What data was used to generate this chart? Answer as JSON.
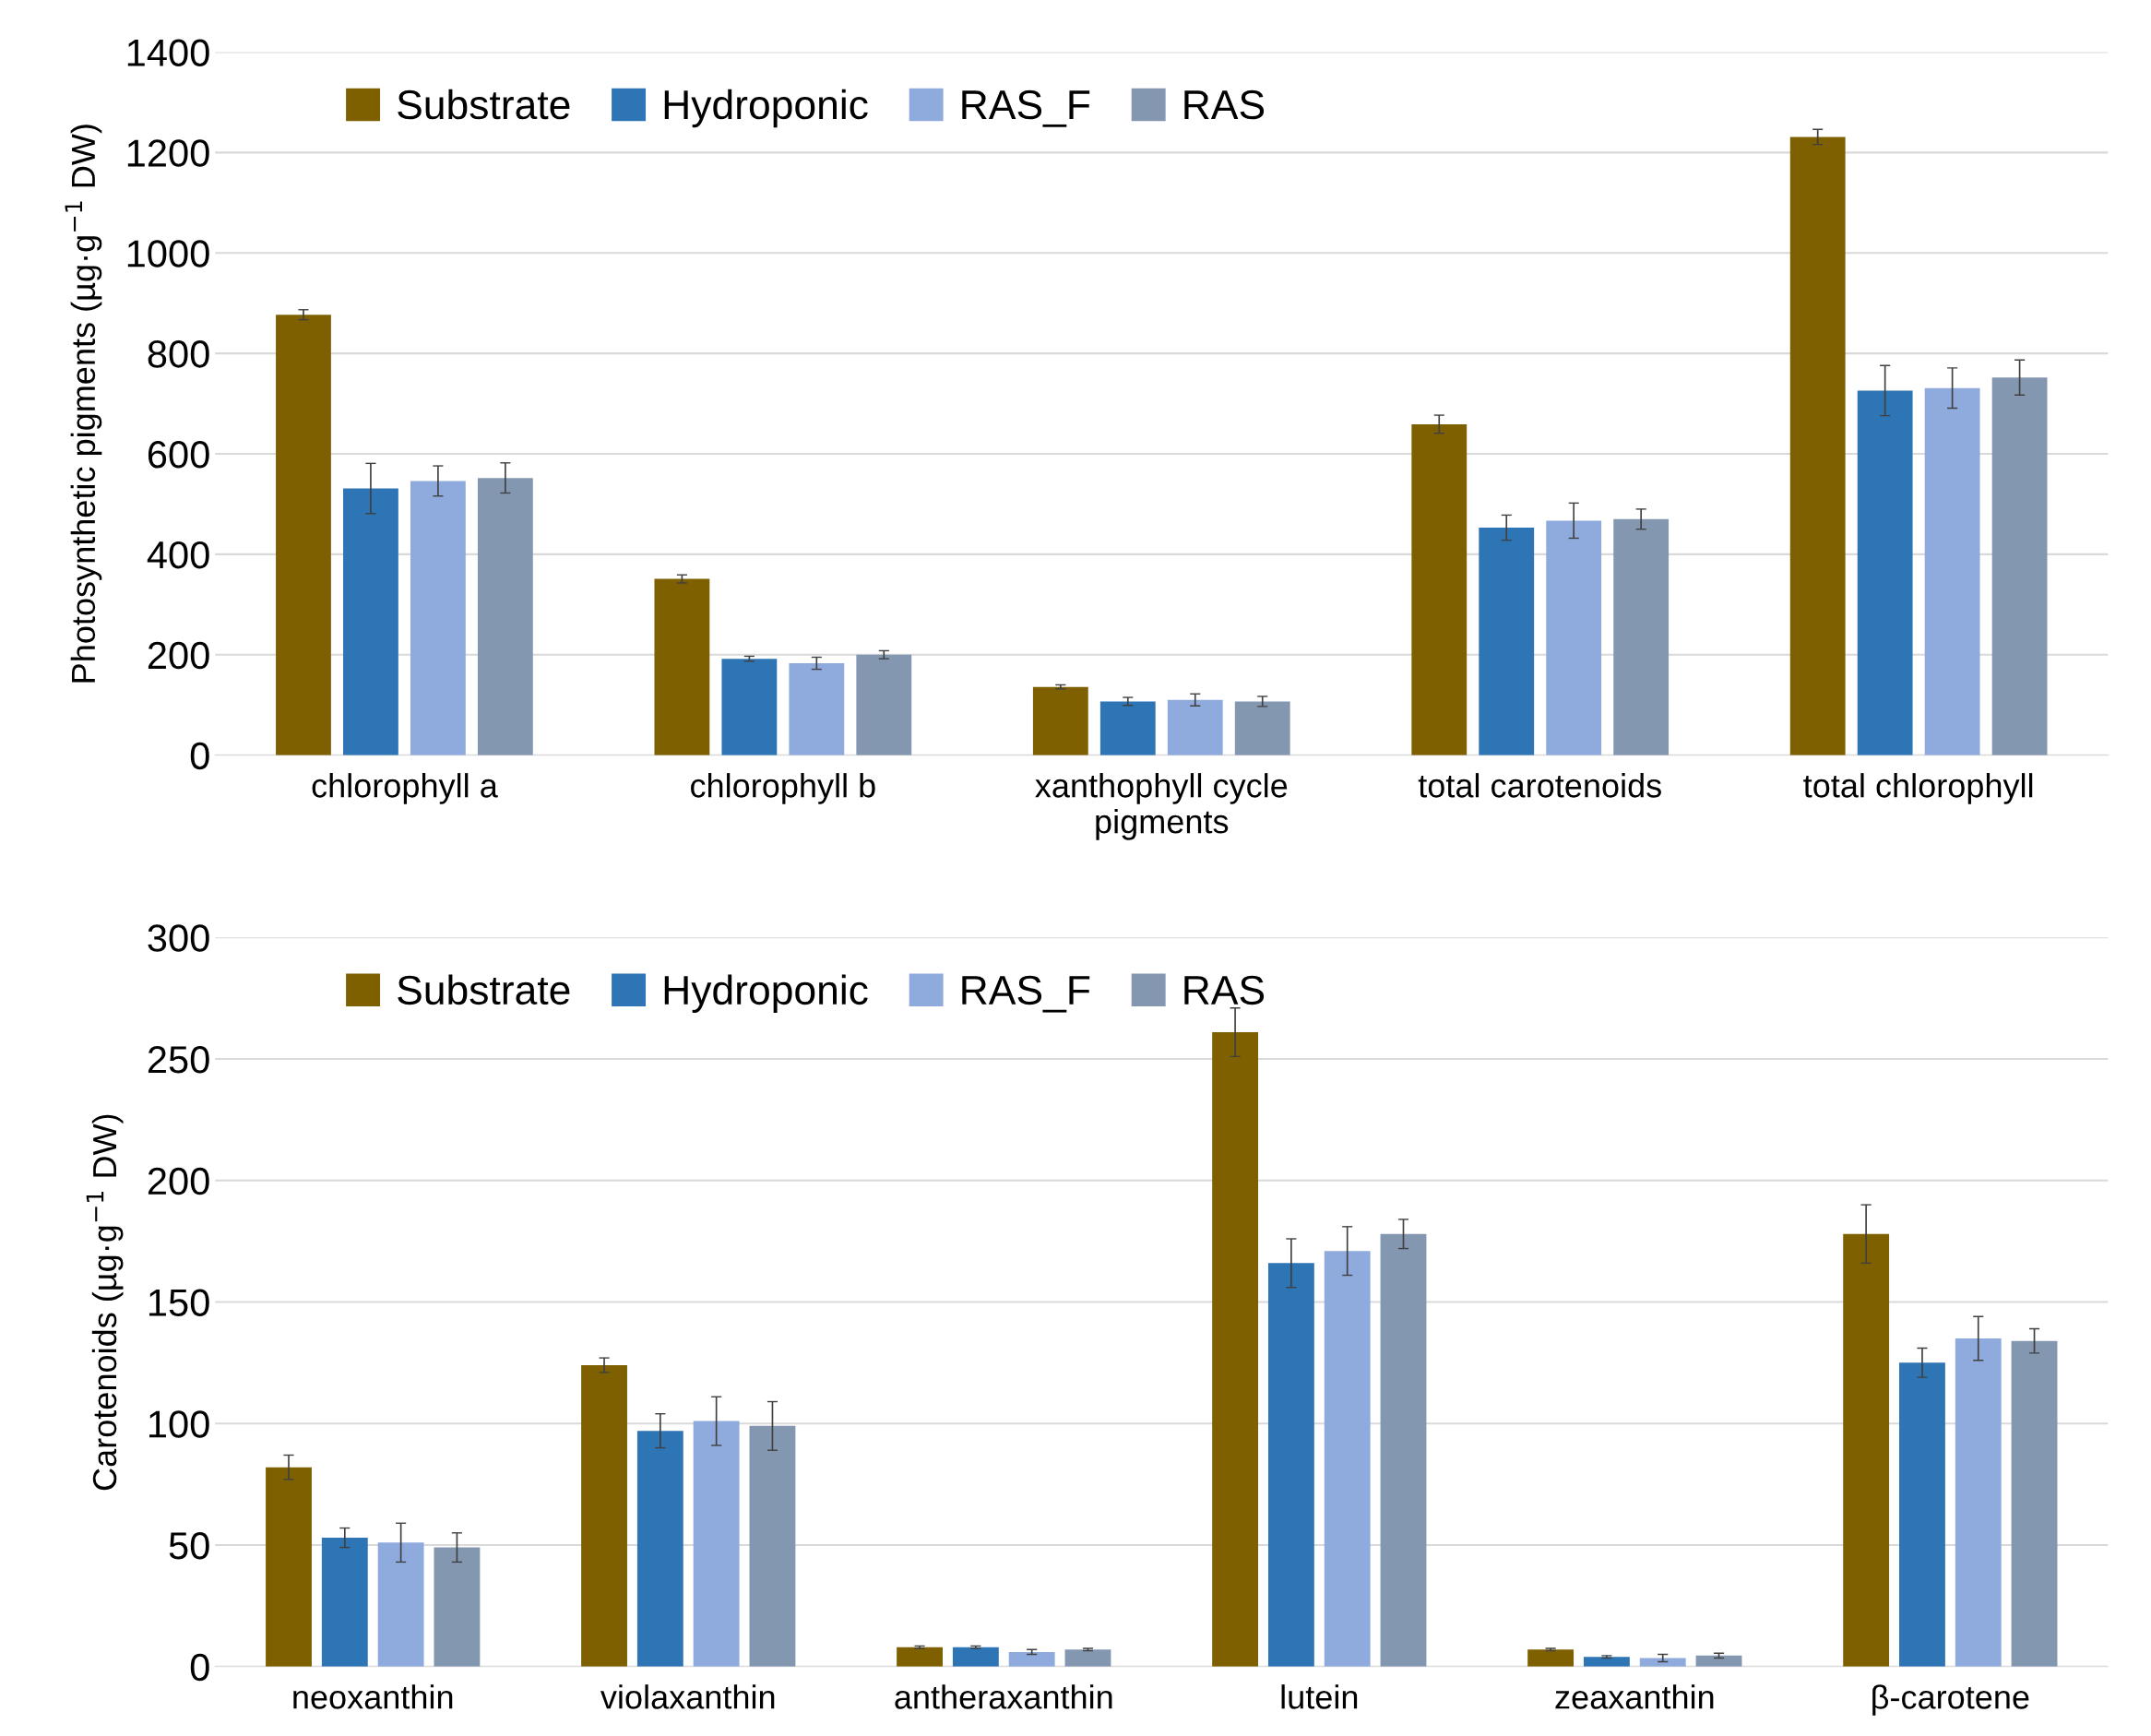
{
  "chart_data": [
    {
      "type": "bar",
      "ylabel": "Photosynthetic pigments (µg·g$^{−1}$ DW)",
      "categories": [
        "chlorophyll a",
        "chlorophyll b",
        "xanthophyll cycle\npigments",
        "total carotenoids",
        "total chlorophyll"
      ],
      "series": [
        {
          "name": "Substrate",
          "color": "#7f6000",
          "values": [
            877,
            351,
            136,
            659,
            1231
          ],
          "errors": [
            10,
            8,
            4,
            18,
            15
          ]
        },
        {
          "name": "Hydroponic",
          "color": "#2e75b6",
          "values": [
            531,
            192,
            107,
            453,
            726
          ],
          "errors": [
            50,
            5,
            8,
            25,
            50
          ]
        },
        {
          "name": "RAS_F",
          "color": "#8faadc",
          "values": [
            546,
            183,
            110,
            467,
            731
          ],
          "errors": [
            30,
            12,
            12,
            35,
            40
          ]
        },
        {
          "name": "RAS",
          "color": "#8497b0",
          "values": [
            552,
            200,
            107,
            470,
            752
          ],
          "errors": [
            30,
            8,
            10,
            20,
            35
          ]
        }
      ],
      "ylim": [
        0,
        1400
      ],
      "yticks": [
        0,
        200,
        400,
        600,
        800,
        1000,
        1200,
        1400
      ],
      "grid": "y",
      "legend": "top left"
    },
    {
      "type": "bar",
      "ylabel": "Carotenoids (µg·g$^{−1}$ DW)",
      "categories": [
        "neoxanthin",
        "violaxanthin",
        "antheraxanthin",
        "lutein",
        "zeaxanthin",
        "β-carotene"
      ],
      "series": [
        {
          "name": "Substrate",
          "color": "#7f6000",
          "values": [
            82,
            124,
            8,
            261,
            7,
            178
          ],
          "errors": [
            5,
            3,
            0.5,
            10,
            0.5,
            12
          ]
        },
        {
          "name": "Hydroponic",
          "color": "#2e75b6",
          "values": [
            53,
            97,
            8,
            166,
            4,
            125
          ],
          "errors": [
            4,
            7,
            0.5,
            10,
            0.5,
            6
          ]
        },
        {
          "name": "RAS_F",
          "color": "#8faadc",
          "values": [
            51,
            101,
            6,
            171,
            3.5,
            135
          ],
          "errors": [
            8,
            10,
            1,
            10,
            1.5,
            9
          ]
        },
        {
          "name": "RAS",
          "color": "#8497b0",
          "values": [
            49,
            99,
            7,
            178,
            4.5,
            134
          ],
          "errors": [
            6,
            10,
            0.5,
            6,
            1,
            5
          ]
        }
      ],
      "ylim": [
        0,
        300
      ],
      "yticks": [
        0,
        50,
        100,
        150,
        200,
        250,
        300
      ],
      "grid": "y",
      "legend": "top left"
    }
  ]
}
